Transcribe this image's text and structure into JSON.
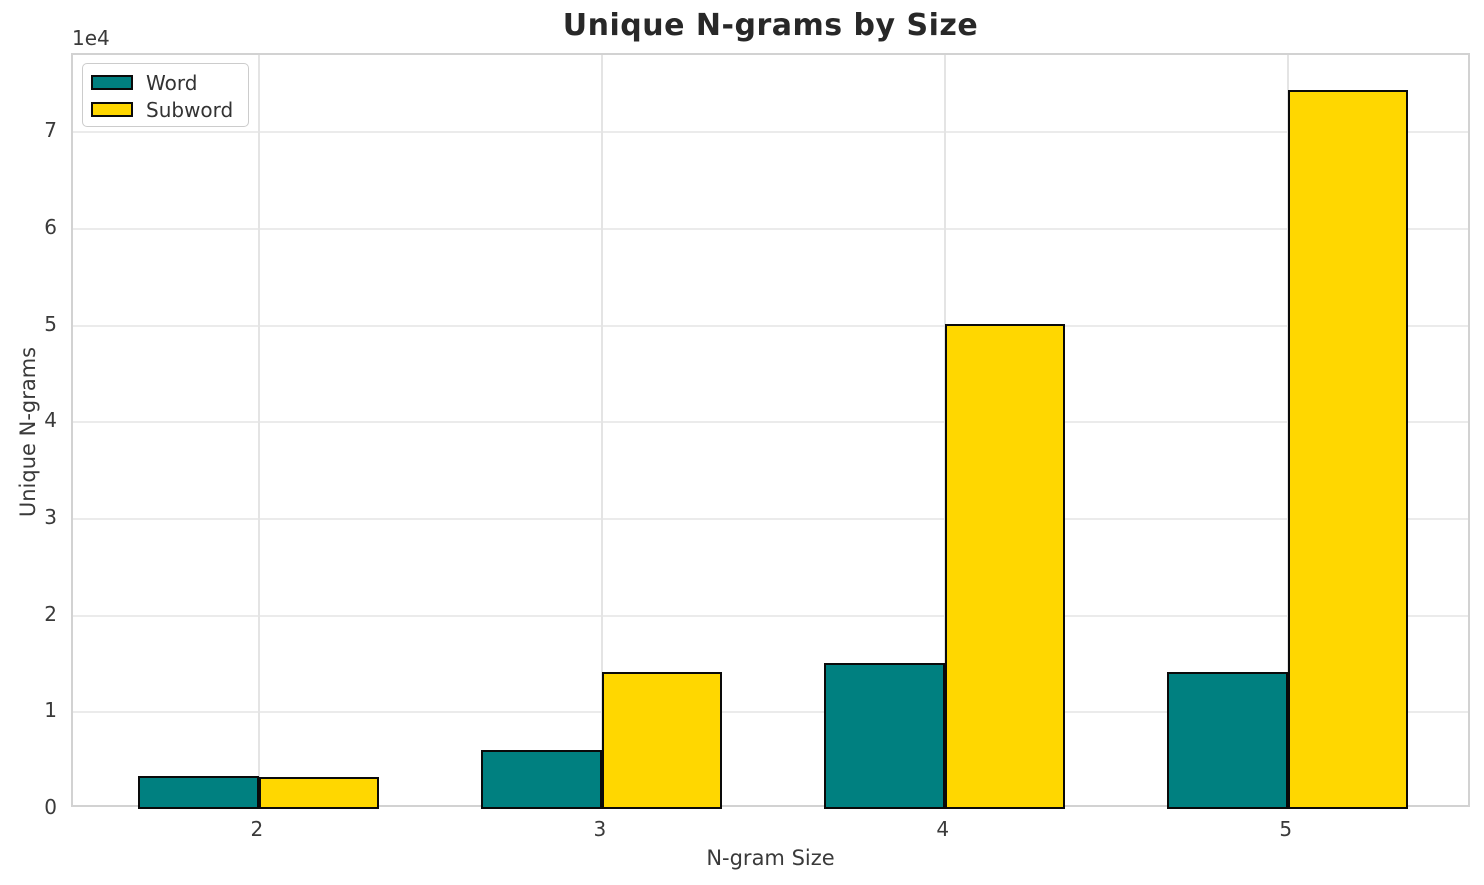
{
  "chart_data": {
    "type": "bar",
    "title": "Unique N-grams by Size",
    "xlabel": "N-gram Size",
    "ylabel": "Unique N-grams",
    "y_offset_label": "1e4",
    "categories": [
      "2",
      "3",
      "4",
      "5"
    ],
    "series": [
      {
        "name": "Word",
        "color": "#008080",
        "values": [
          3400,
          6100,
          15100,
          14200
        ]
      },
      {
        "name": "Subword",
        "color": "#FFD700",
        "values": [
          3300,
          14200,
          50200,
          74400
        ]
      }
    ],
    "bar_edge_color": "#0a0a0a",
    "y_ticks": [
      0,
      1,
      2,
      3,
      4,
      5,
      6,
      7
    ],
    "y_tick_scale": 10000,
    "ylim": [
      0,
      78000
    ],
    "grid": true,
    "legend_position": "upper-left"
  },
  "legend": {
    "items": [
      {
        "label": "Word",
        "color": "#008080"
      },
      {
        "label": "Subword",
        "color": "#FFD700"
      }
    ]
  }
}
